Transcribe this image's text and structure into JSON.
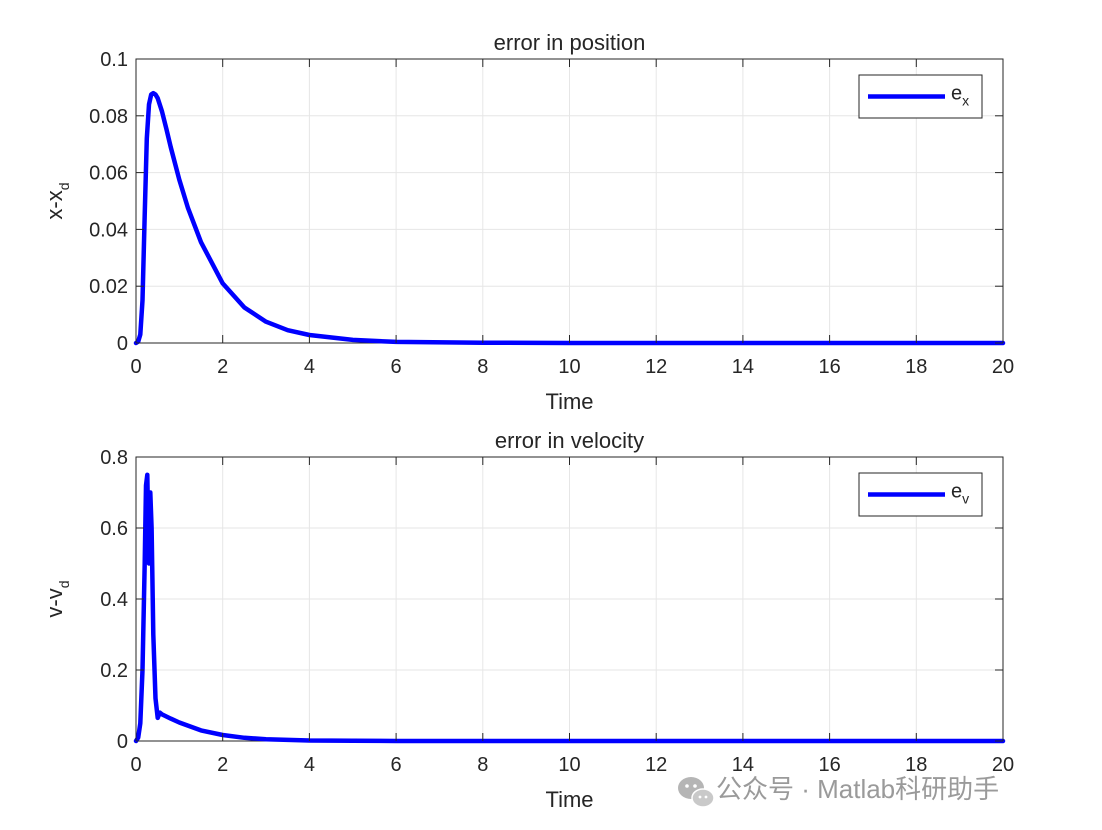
{
  "chart_data": [
    {
      "type": "line",
      "title": "error in position",
      "xlabel": "Time",
      "ylabel": {
        "main": "x-x",
        "sub": "d"
      },
      "xlim": [
        0,
        20
      ],
      "ylim": [
        0,
        0.1
      ],
      "xticks": [
        0,
        2,
        4,
        6,
        8,
        10,
        12,
        14,
        16,
        18,
        20
      ],
      "yticks": [
        0,
        0.02,
        0.04,
        0.06,
        0.08,
        0.1
      ],
      "ytick_labels": [
        "0",
        "0.02",
        "0.04",
        "0.06",
        "0.08",
        "0.1"
      ],
      "grid": true,
      "legend_position": "top-right",
      "series": [
        {
          "name": {
            "main": "e",
            "sub": "x"
          },
          "color": "#0000ff",
          "x": [
            0,
            0.05,
            0.1,
            0.15,
            0.2,
            0.25,
            0.3,
            0.35,
            0.4,
            0.45,
            0.5,
            0.6,
            0.7,
            0.8,
            1.0,
            1.2,
            1.5,
            2.0,
            2.5,
            3.0,
            3.5,
            4.0,
            5.0,
            6.0,
            8.0,
            10,
            12,
            14,
            16,
            18,
            20
          ],
          "y": [
            0,
            0.0005,
            0.003,
            0.015,
            0.045,
            0.072,
            0.084,
            0.0875,
            0.088,
            0.0875,
            0.0862,
            0.0815,
            0.0755,
            0.069,
            0.0575,
            0.0475,
            0.0355,
            0.021,
            0.0125,
            0.0075,
            0.0045,
            0.0028,
            0.0011,
            0.0004,
            0.0001,
            0,
            0,
            0,
            0,
            0,
            0
          ]
        }
      ]
    },
    {
      "type": "line",
      "title": "error in velocity",
      "xlabel": "Time",
      "ylabel": {
        "main": "v-v",
        "sub": "d"
      },
      "xlim": [
        0,
        20
      ],
      "ylim": [
        0,
        0.8
      ],
      "xticks": [
        0,
        2,
        4,
        6,
        8,
        10,
        12,
        14,
        16,
        18,
        20
      ],
      "yticks": [
        0,
        0.2,
        0.4,
        0.6,
        0.8
      ],
      "ytick_labels": [
        "0",
        "0.2",
        "0.4",
        "0.6",
        "0.8"
      ],
      "grid": true,
      "legend_position": "top-right",
      "series": [
        {
          "name": {
            "main": "e",
            "sub": "v"
          },
          "color": "#0000ff",
          "x": [
            0,
            0.05,
            0.1,
            0.15,
            0.2,
            0.23,
            0.26,
            0.28,
            0.3,
            0.33,
            0.36,
            0.4,
            0.45,
            0.5,
            0.55,
            0.6,
            0.8,
            1.0,
            1.5,
            2.0,
            2.5,
            3.0,
            4.0,
            5.0,
            6.0,
            8.0,
            10,
            12,
            14,
            16,
            18,
            20
          ],
          "y": [
            0,
            0.01,
            0.05,
            0.2,
            0.5,
            0.72,
            0.75,
            0.62,
            0.5,
            0.7,
            0.6,
            0.3,
            0.12,
            0.065,
            0.08,
            0.075,
            0.063,
            0.052,
            0.03,
            0.017,
            0.009,
            0.005,
            0.0015,
            0.0005,
            0.0001,
            0,
            0,
            0,
            0,
            0,
            0,
            0
          ]
        }
      ]
    }
  ],
  "watermark": {
    "icon": "wechat-icon",
    "text": "公众号 · Matlab科研助手"
  }
}
